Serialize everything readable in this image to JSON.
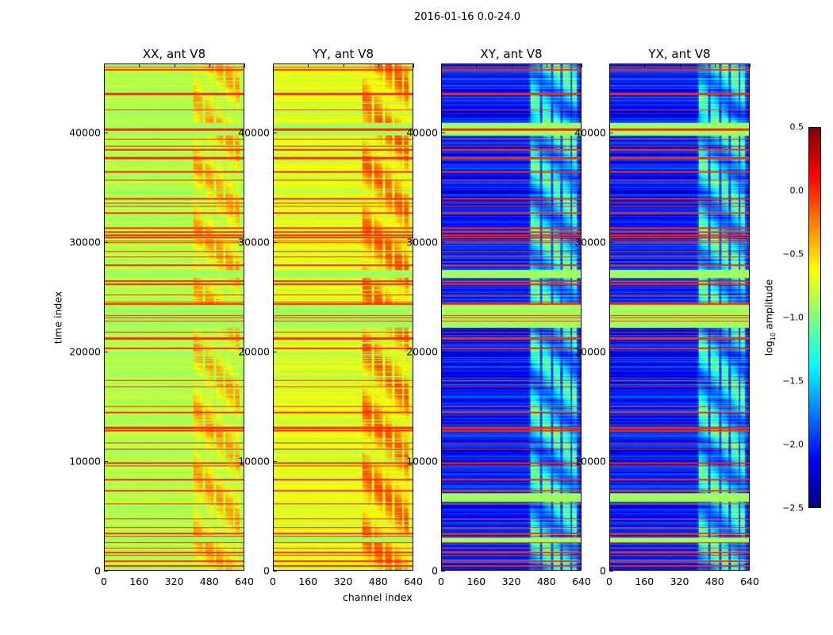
{
  "chart_data": {
    "type": "heatmap",
    "title": "2016-01-16 0.0-24.0",
    "xlabel": "channel index",
    "ylabel": "time index",
    "xlim": [
      0,
      640
    ],
    "ylim": [
      0,
      46300
    ],
    "xticks": [
      "0",
      "160",
      "320",
      "480",
      "640"
    ],
    "yticks": [
      "0",
      "10000",
      "20000",
      "30000",
      "40000"
    ],
    "xtick_values": [
      0,
      160,
      320,
      480,
      640
    ],
    "ytick_values": [
      0,
      10000,
      20000,
      30000,
      40000
    ],
    "colormap": "jet",
    "colorbar": {
      "label": "log10 amplitude",
      "label_main": "log",
      "label_sub": "10",
      "label_rest": " amplitude",
      "range": [
        -2.5,
        0.5
      ],
      "ticks": [
        "0.5",
        "0.0",
        "−0.5",
        "−1.0",
        "−1.5",
        "−2.0",
        "−2.5"
      ],
      "tick_values": [
        0.5,
        0.0,
        -0.5,
        -1.0,
        -1.5,
        -2.0,
        -2.5
      ]
    },
    "panels": [
      {
        "title": "XX, ant V8",
        "base": -0.85,
        "rfi_boost": 0.45
      },
      {
        "title": "YY, ant V8",
        "base": -0.7,
        "rfi_boost": 0.5
      },
      {
        "title": "XY, ant V8",
        "base": -2.05,
        "rfi_boost": 0.75
      },
      {
        "title": "YX, ant V8",
        "base": -2.05,
        "rfi_boost": 0.75
      }
    ],
    "rfi_channel_ranges": [
      [
        405,
        450
      ],
      [
        460,
        500
      ],
      [
        510,
        545
      ],
      [
        555,
        590
      ],
      [
        600,
        620
      ]
    ],
    "flagged_bands_time": [
      [
        22200,
        24400
      ],
      [
        39800,
        41000
      ],
      [
        26800,
        27500
      ],
      [
        6300,
        7100
      ],
      [
        2600,
        3000
      ]
    ],
    "flagged_value": -0.9,
    "red_row_times": [
      45800,
      43600,
      40300,
      38500,
      37800,
      36500,
      34000,
      32700,
      31000,
      30500,
      29200,
      27900,
      26500,
      26200,
      24400,
      21200,
      20300,
      13000,
      12800,
      9800,
      8300,
      7300,
      1600,
      800,
      400
    ]
  }
}
